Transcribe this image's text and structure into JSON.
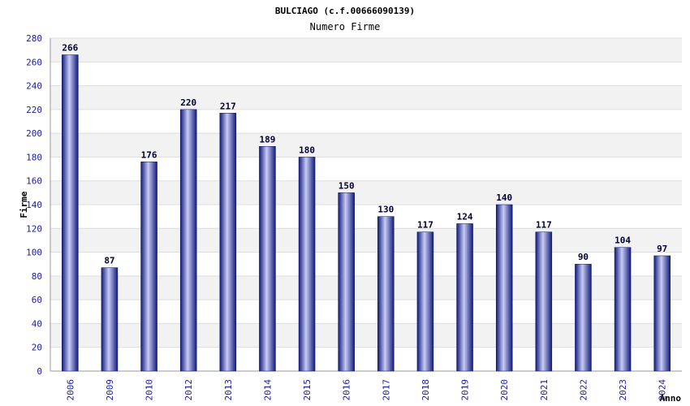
{
  "chart_data": {
    "type": "bar",
    "title": "BULCIAGO (c.f.00666090139)",
    "subtitle": "Numero Firme",
    "ylabel": "Firme",
    "xlabel": "Anno",
    "categories": [
      "2006",
      "2009",
      "2010",
      "2012",
      "2013",
      "2014",
      "2015",
      "2016",
      "2017",
      "2018",
      "2019",
      "2020",
      "2021",
      "2022",
      "2023",
      "2024"
    ],
    "values": [
      266,
      87,
      176,
      220,
      217,
      189,
      180,
      150,
      130,
      117,
      124,
      140,
      117,
      90,
      104,
      97
    ],
    "ylim": [
      0,
      280
    ],
    "yticks": [
      "0",
      "20",
      "40",
      "60",
      "80",
      "100",
      "120",
      "140",
      "160",
      "180",
      "200",
      "220",
      "240",
      "260",
      "280"
    ],
    "grid": true,
    "colors": {
      "bar_dark": "#101a7a",
      "bar_light": "#c8ccf5",
      "band": "#f2f2f2",
      "tick_text": "#1a1aa6"
    }
  }
}
